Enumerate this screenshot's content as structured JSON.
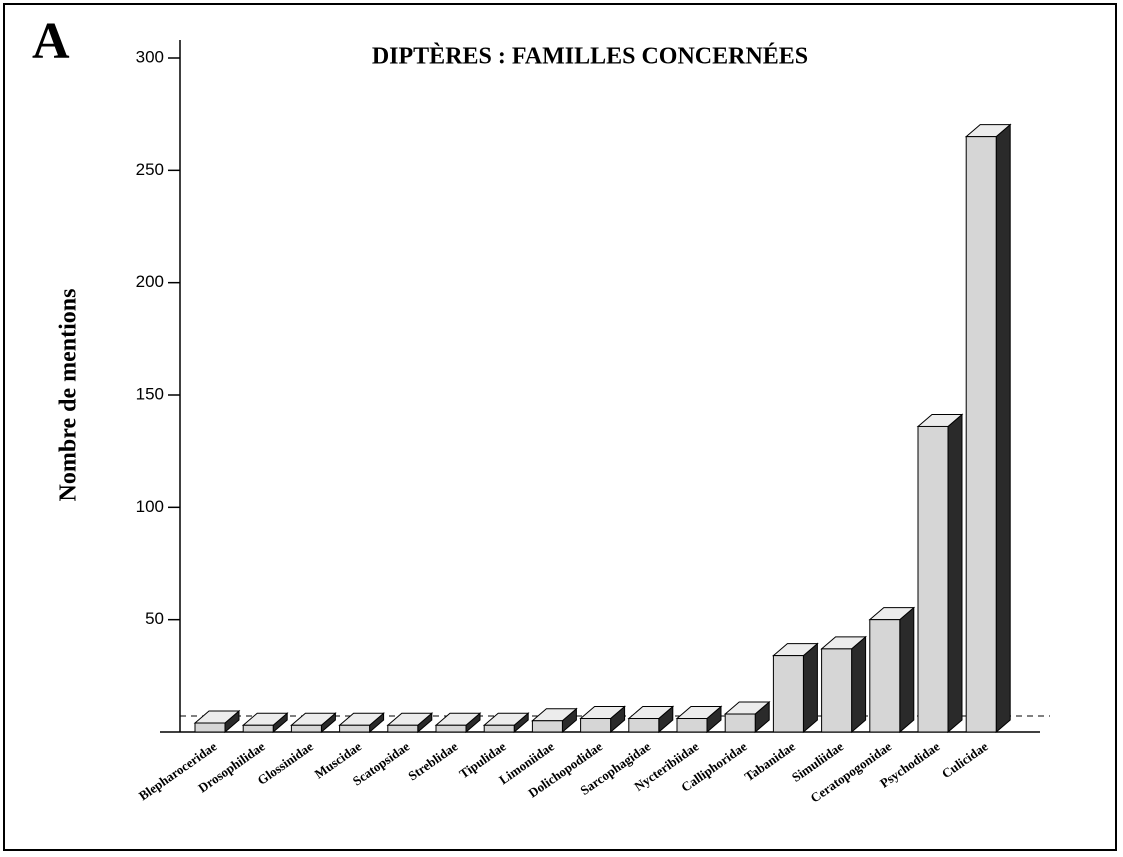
{
  "chart_data": {
    "type": "bar3d",
    "panel_label": "A",
    "title": "DIPTÈRES : FAMILLES CONCERNÉES",
    "y_label": "Nombre de mentions",
    "categories": [
      "Blepharoceridae",
      "Drosophilidae",
      "Glossinidae",
      "Muscidae",
      "Scatopsidae",
      "Streblidae",
      "Tipulidae",
      "Limoniidae",
      "Dolichopodidae",
      "Sarcophagidae",
      "Nycteribiidae",
      "Calliphoridae",
      "Tabanidae",
      "Simuliidae",
      "Ceratopogonidae",
      "Psychodidae",
      "Culicidae"
    ],
    "values": [
      4,
      3,
      3,
      3,
      3,
      3,
      3,
      5,
      6,
      6,
      6,
      8,
      34,
      37,
      50,
      136,
      265
    ],
    "color": "#d6d6d6",
    "ylim": [
      0,
      300
    ],
    "yticks": [
      50,
      100,
      150,
      200,
      250,
      300
    ]
  }
}
